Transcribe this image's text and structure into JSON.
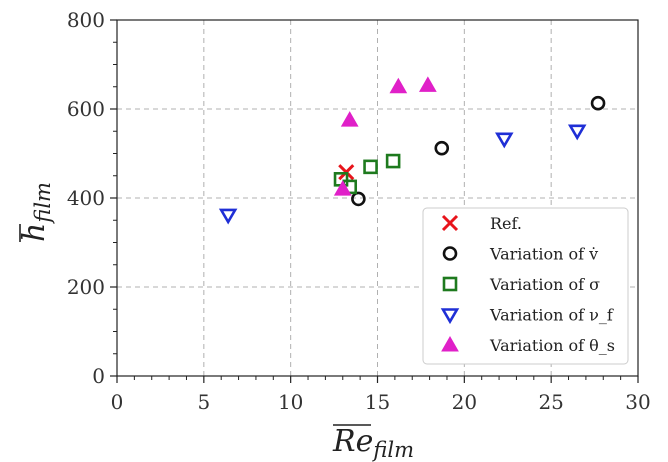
{
  "chart_data": {
    "type": "scatter",
    "xlabel": "Re_film",
    "ylabel": "h_film",
    "xlim": [
      0,
      30
    ],
    "ylim": [
      0,
      800
    ],
    "xticks": [
      0,
      5,
      10,
      15,
      20,
      25,
      30
    ],
    "yticks": [
      0,
      200,
      400,
      600,
      800
    ],
    "grid": true,
    "legend_position": "lower-right",
    "series": [
      {
        "name": "Ref.",
        "marker": "x",
        "color": "#e8141b",
        "points": [
          [
            13.2,
            458
          ]
        ]
      },
      {
        "name": "Variation of v̇",
        "marker": "circle",
        "color": "#111111",
        "points": [
          [
            13.9,
            398
          ],
          [
            18.7,
            512
          ],
          [
            27.7,
            613
          ]
        ]
      },
      {
        "name": "Variation of σ",
        "marker": "square",
        "color": "#1e7a1e",
        "points": [
          [
            12.9,
            442
          ],
          [
            13.4,
            425
          ],
          [
            14.6,
            470
          ],
          [
            15.9,
            483
          ]
        ]
      },
      {
        "name": "Variation of ν_f",
        "marker": "triangle-down",
        "color": "#1f2fd6",
        "points": [
          [
            6.4,
            362
          ],
          [
            22.3,
            533
          ],
          [
            26.5,
            551
          ]
        ]
      },
      {
        "name": "Variation of θ_s",
        "marker": "triangle-up",
        "color": "#e020c8",
        "points": [
          [
            13.0,
            420
          ],
          [
            13.4,
            575
          ],
          [
            16.2,
            650
          ],
          [
            17.9,
            653
          ]
        ]
      }
    ]
  }
}
